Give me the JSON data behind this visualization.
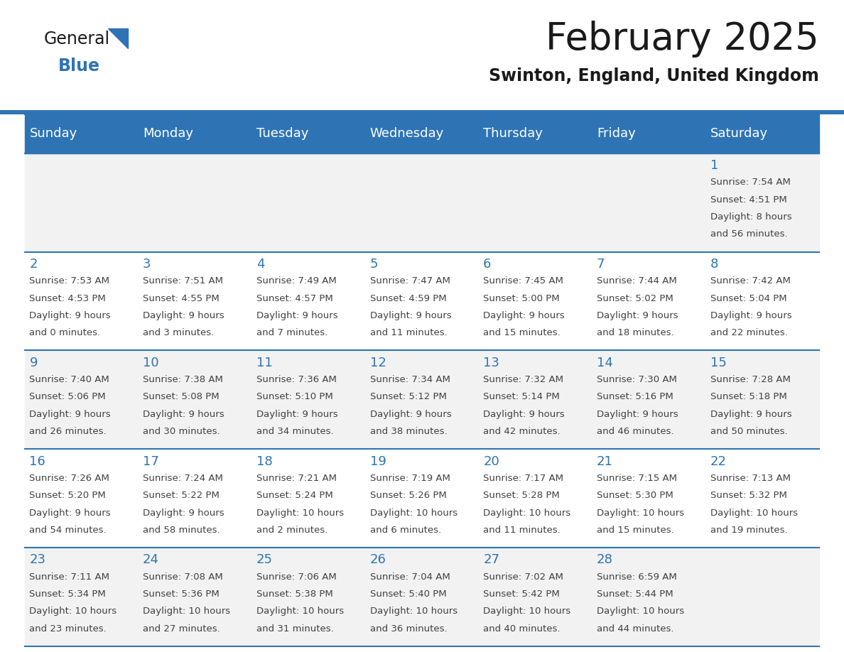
{
  "title": "February 2025",
  "subtitle": "Swinton, England, United Kingdom",
  "days_of_week": [
    "Sunday",
    "Monday",
    "Tuesday",
    "Wednesday",
    "Thursday",
    "Friday",
    "Saturday"
  ],
  "header_bg": "#2E74B5",
  "header_text": "#FFFFFF",
  "row_bg_odd": "#F2F2F2",
  "row_bg_even": "#FFFFFF",
  "separator_color": "#2E74B5",
  "cell_text_color": "#404040",
  "day_num_color": "#2E74B5",
  "calendar_data": [
    [
      null,
      null,
      null,
      null,
      null,
      null,
      {
        "day": "1",
        "sunrise": "7:54 AM",
        "sunset": "4:51 PM",
        "daylight_h": "8 hours",
        "daylight_m": "and 56 minutes."
      }
    ],
    [
      {
        "day": "2",
        "sunrise": "7:53 AM",
        "sunset": "4:53 PM",
        "daylight_h": "9 hours",
        "daylight_m": "and 0 minutes."
      },
      {
        "day": "3",
        "sunrise": "7:51 AM",
        "sunset": "4:55 PM",
        "daylight_h": "9 hours",
        "daylight_m": "and 3 minutes."
      },
      {
        "day": "4",
        "sunrise": "7:49 AM",
        "sunset": "4:57 PM",
        "daylight_h": "9 hours",
        "daylight_m": "and 7 minutes."
      },
      {
        "day": "5",
        "sunrise": "7:47 AM",
        "sunset": "4:59 PM",
        "daylight_h": "9 hours",
        "daylight_m": "and 11 minutes."
      },
      {
        "day": "6",
        "sunrise": "7:45 AM",
        "sunset": "5:00 PM",
        "daylight_h": "9 hours",
        "daylight_m": "and 15 minutes."
      },
      {
        "day": "7",
        "sunrise": "7:44 AM",
        "sunset": "5:02 PM",
        "daylight_h": "9 hours",
        "daylight_m": "and 18 minutes."
      },
      {
        "day": "8",
        "sunrise": "7:42 AM",
        "sunset": "5:04 PM",
        "daylight_h": "9 hours",
        "daylight_m": "and 22 minutes."
      }
    ],
    [
      {
        "day": "9",
        "sunrise": "7:40 AM",
        "sunset": "5:06 PM",
        "daylight_h": "9 hours",
        "daylight_m": "and 26 minutes."
      },
      {
        "day": "10",
        "sunrise": "7:38 AM",
        "sunset": "5:08 PM",
        "daylight_h": "9 hours",
        "daylight_m": "and 30 minutes."
      },
      {
        "day": "11",
        "sunrise": "7:36 AM",
        "sunset": "5:10 PM",
        "daylight_h": "9 hours",
        "daylight_m": "and 34 minutes."
      },
      {
        "day": "12",
        "sunrise": "7:34 AM",
        "sunset": "5:12 PM",
        "daylight_h": "9 hours",
        "daylight_m": "and 38 minutes."
      },
      {
        "day": "13",
        "sunrise": "7:32 AM",
        "sunset": "5:14 PM",
        "daylight_h": "9 hours",
        "daylight_m": "and 42 minutes."
      },
      {
        "day": "14",
        "sunrise": "7:30 AM",
        "sunset": "5:16 PM",
        "daylight_h": "9 hours",
        "daylight_m": "and 46 minutes."
      },
      {
        "day": "15",
        "sunrise": "7:28 AM",
        "sunset": "5:18 PM",
        "daylight_h": "9 hours",
        "daylight_m": "and 50 minutes."
      }
    ],
    [
      {
        "day": "16",
        "sunrise": "7:26 AM",
        "sunset": "5:20 PM",
        "daylight_h": "9 hours",
        "daylight_m": "and 54 minutes."
      },
      {
        "day": "17",
        "sunrise": "7:24 AM",
        "sunset": "5:22 PM",
        "daylight_h": "9 hours",
        "daylight_m": "and 58 minutes."
      },
      {
        "day": "18",
        "sunrise": "7:21 AM",
        "sunset": "5:24 PM",
        "daylight_h": "10 hours",
        "daylight_m": "and 2 minutes."
      },
      {
        "day": "19",
        "sunrise": "7:19 AM",
        "sunset": "5:26 PM",
        "daylight_h": "10 hours",
        "daylight_m": "and 6 minutes."
      },
      {
        "day": "20",
        "sunrise": "7:17 AM",
        "sunset": "5:28 PM",
        "daylight_h": "10 hours",
        "daylight_m": "and 11 minutes."
      },
      {
        "day": "21",
        "sunrise": "7:15 AM",
        "sunset": "5:30 PM",
        "daylight_h": "10 hours",
        "daylight_m": "and 15 minutes."
      },
      {
        "day": "22",
        "sunrise": "7:13 AM",
        "sunset": "5:32 PM",
        "daylight_h": "10 hours",
        "daylight_m": "and 19 minutes."
      }
    ],
    [
      {
        "day": "23",
        "sunrise": "7:11 AM",
        "sunset": "5:34 PM",
        "daylight_h": "10 hours",
        "daylight_m": "and 23 minutes."
      },
      {
        "day": "24",
        "sunrise": "7:08 AM",
        "sunset": "5:36 PM",
        "daylight_h": "10 hours",
        "daylight_m": "and 27 minutes."
      },
      {
        "day": "25",
        "sunrise": "7:06 AM",
        "sunset": "5:38 PM",
        "daylight_h": "10 hours",
        "daylight_m": "and 31 minutes."
      },
      {
        "day": "26",
        "sunrise": "7:04 AM",
        "sunset": "5:40 PM",
        "daylight_h": "10 hours",
        "daylight_m": "and 36 minutes."
      },
      {
        "day": "27",
        "sunrise": "7:02 AM",
        "sunset": "5:42 PM",
        "daylight_h": "10 hours",
        "daylight_m": "and 40 minutes."
      },
      {
        "day": "28",
        "sunrise": "6:59 AM",
        "sunset": "5:44 PM",
        "daylight_h": "10 hours",
        "daylight_m": "and 44 minutes."
      },
      null
    ]
  ],
  "title_fontsize": 38,
  "subtitle_fontsize": 17,
  "header_fontsize": 13,
  "day_num_fontsize": 13,
  "cell_fontsize": 9.5,
  "logo_general_fontsize": 17,
  "logo_blue_fontsize": 17
}
